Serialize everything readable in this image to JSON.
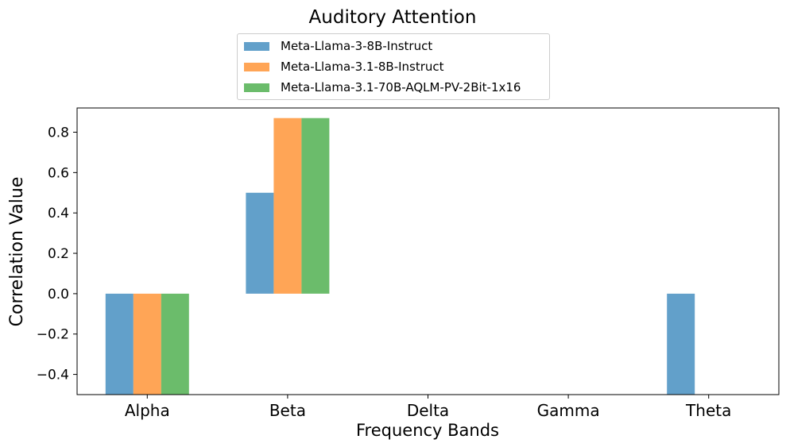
{
  "chart_data": {
    "type": "bar",
    "title": "Auditory Attention",
    "xlabel": "Frequency Bands",
    "ylabel": "Correlation Value",
    "categories": [
      "Alpha",
      "Beta",
      "Delta",
      "Gamma",
      "Theta"
    ],
    "series": [
      {
        "name": "Meta-Llama-3-8B-Instruct",
        "color": "#1f77b4",
        "values": [
          -0.5,
          0.5,
          null,
          null,
          -0.5
        ]
      },
      {
        "name": "Meta-Llama-3.1-8B-Instruct",
        "color": "#ff7f0e",
        "values": [
          -0.5,
          0.87,
          null,
          null,
          null
        ]
      },
      {
        "name": "Meta-Llama-3.1-70B-AQLM-PV-2Bit-1x16",
        "color": "#2ca02c",
        "values": [
          -0.5,
          0.87,
          null,
          null,
          null
        ]
      }
    ],
    "yticks": [
      -0.4,
      -0.2,
      0.0,
      0.2,
      0.4,
      0.6,
      0.8
    ],
    "ytick_labels": [
      "−0.4",
      "−0.2",
      "0.0",
      "0.2",
      "0.4",
      "0.6",
      "0.8"
    ],
    "ylim": [
      -0.5,
      0.92
    ],
    "legend_position": "top-center",
    "grid": false
  }
}
